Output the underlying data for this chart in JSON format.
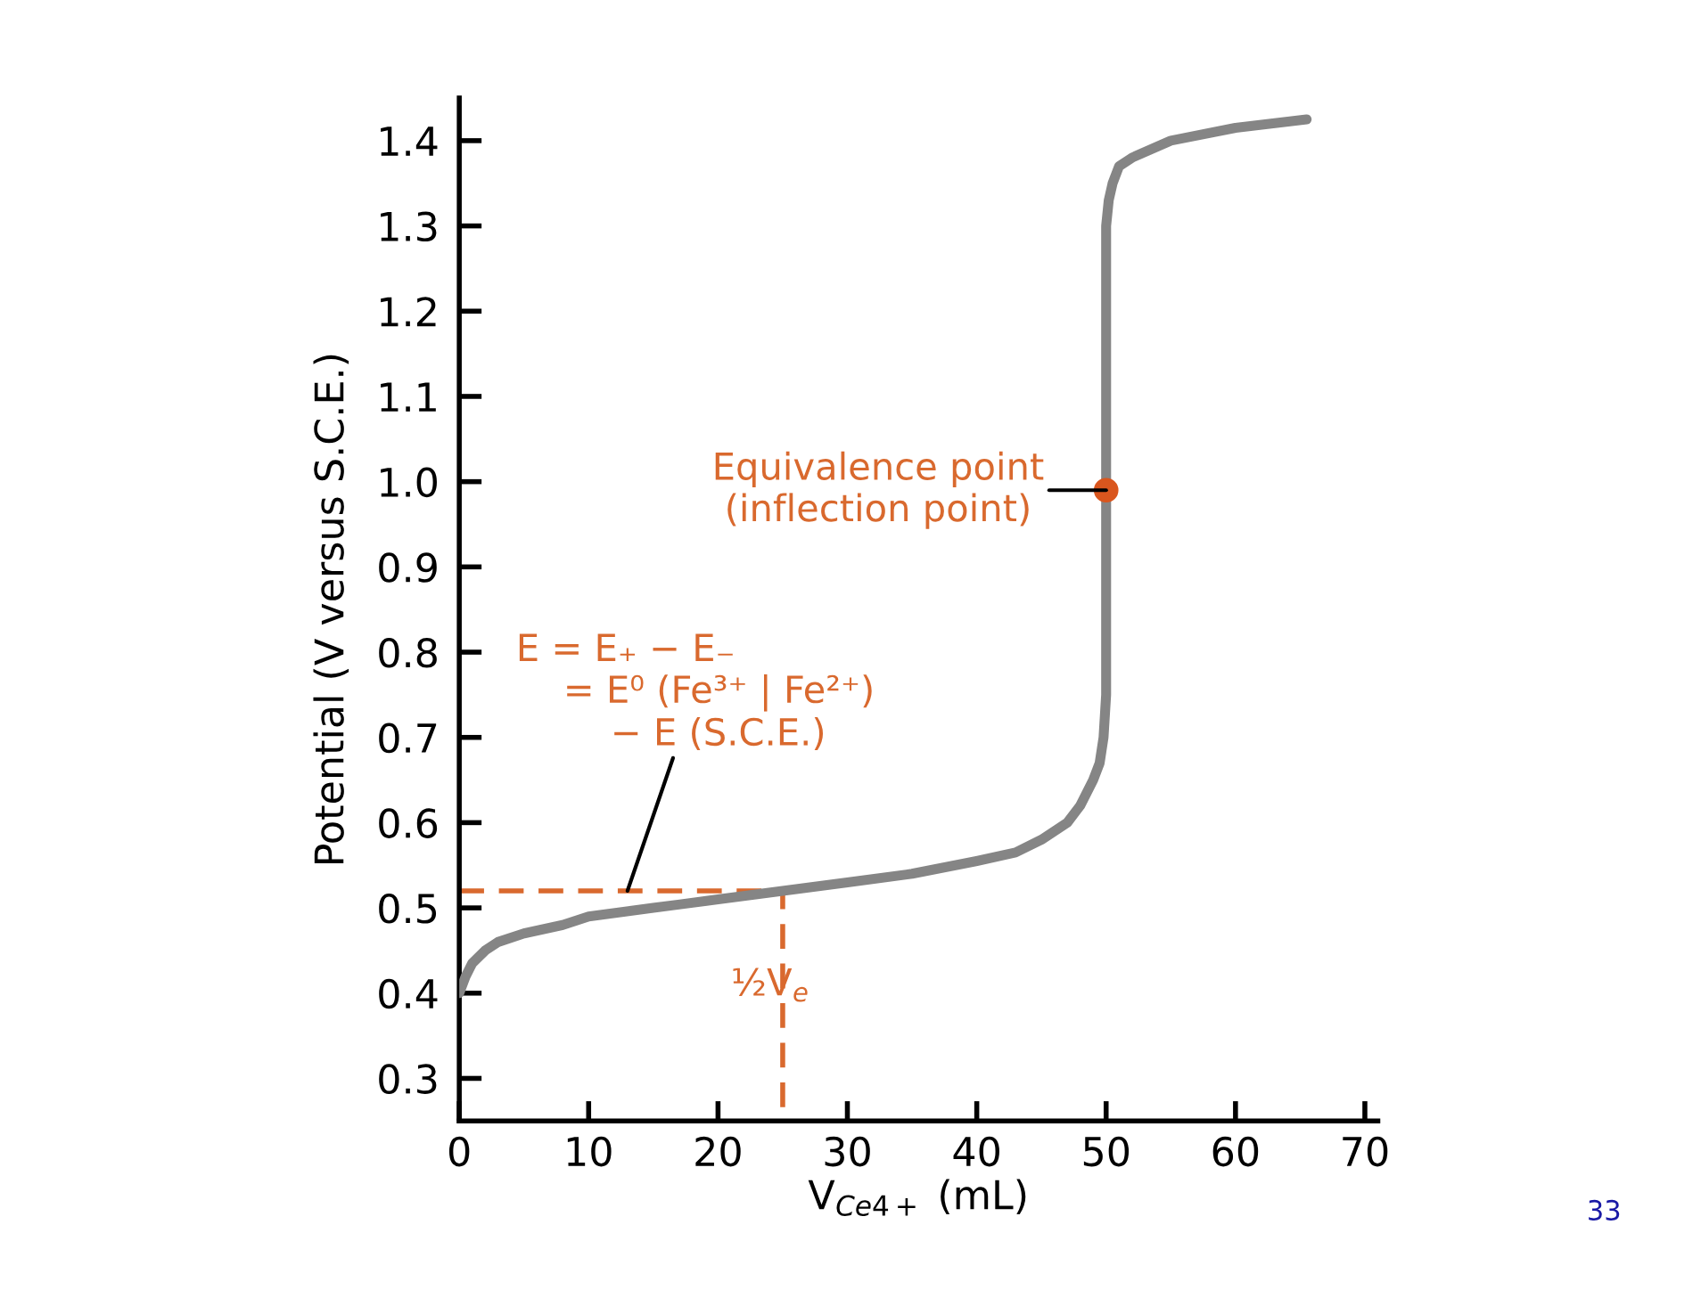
{
  "chart_data": {
    "type": "line",
    "xlabel": "V$_{Ce4+}$ (mL)",
    "ylabel": "Potential (V versus S.C.E.)",
    "xlim": [
      0,
      71
    ],
    "ylim": [
      0.25,
      1.45
    ],
    "xticks": [
      0,
      10,
      20,
      30,
      40,
      50,
      60,
      70
    ],
    "yticks": [
      0.3,
      {
        "value": 0.4,
        "label": "0.4"
      },
      0.5,
      0.6,
      0.7,
      0.8,
      0.9,
      {
        "value": 1.0,
        "label": "1.0"
      },
      1.1,
      1.2,
      1.3,
      1.4
    ],
    "grid": false,
    "legend": false,
    "series": [
      {
        "color": "#858585",
        "line_style": "solid",
        "marker": "none",
        "x": [
          0,
          0.5,
          1,
          2,
          3,
          5,
          8,
          10,
          15,
          20,
          25,
          30,
          35,
          40,
          43,
          45,
          47,
          48,
          49,
          49.5,
          49.8,
          50,
          50,
          50.2,
          50.5,
          51,
          52,
          55,
          60,
          65.5
        ],
        "values": [
          0.4,
          0.42,
          0.435,
          0.45,
          0.46,
          0.47,
          0.48,
          0.49,
          0.5,
          0.51,
          0.52,
          0.53,
          0.54,
          0.555,
          0.565,
          0.58,
          0.6,
          0.62,
          0.65,
          0.67,
          0.7,
          0.75,
          1.3,
          1.33,
          1.35,
          1.37,
          1.38,
          1.4,
          1.415,
          1.425
        ]
      },
      {
        "type": "line",
        "color": "#d9692e",
        "line_style": "dashed",
        "marker": "none",
        "x": [
          0,
          25,
          25
        ],
        "values": [
          0.52,
          0.52,
          0.25
        ]
      },
      {
        "type": "scatter",
        "color": "#d9561e",
        "marker": "circle",
        "x": [
          50
        ],
        "values": [
          0.99
        ]
      }
    ],
    "annotations": [
      {
        "text": "Equivalence point\n(inflection point)",
        "x": 50,
        "y": 0.99
      },
      {
        "text": "E = E₊ − E₋\n    = E⁰ (Fe³⁺ | Fe²⁺)\n        − E (S.C.E.)",
        "x": 13,
        "y": 0.52
      },
      {
        "text": "½V$_{e}$",
        "x": 25,
        "y": 0.38
      },
      "33"
    ]
  }
}
